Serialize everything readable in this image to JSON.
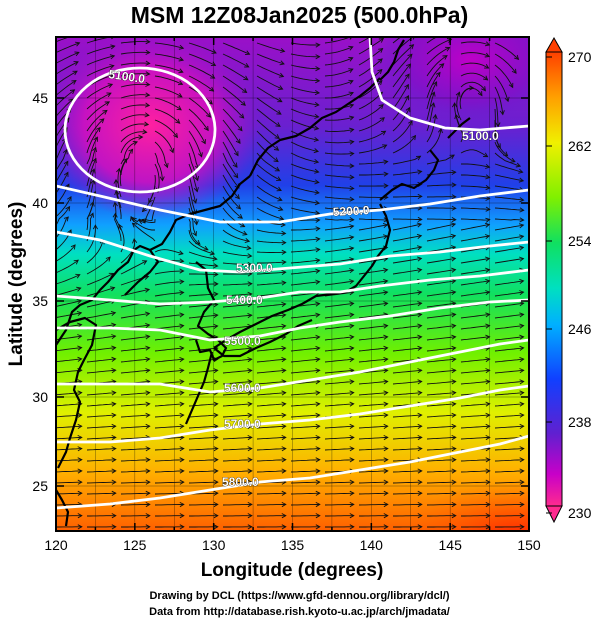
{
  "title": "MSM 12Z08Jan2025 (500.0hPa)",
  "axes": {
    "xlabel": "Longitude (degrees)",
    "ylabel": "Latitude  (degrees)",
    "xticks": [
      "120",
      "125",
      "130",
      "135",
      "140",
      "145",
      "150"
    ],
    "yticks": [
      "45",
      "40",
      "35",
      "30",
      "25"
    ]
  },
  "colorbar": {
    "ticks": [
      "270",
      "262",
      "254",
      "246",
      "238",
      "230"
    ],
    "range": [
      230,
      270
    ],
    "colors": [
      "#ff2a8f",
      "#c800c8",
      "#6020d0",
      "#1040ff",
      "#00b0ff",
      "#00e0c0",
      "#10e060",
      "#80f000",
      "#f0f000",
      "#ffa000",
      "#ff4000"
    ]
  },
  "contours": [
    {
      "label": "5100.0"
    },
    {
      "label": "5100.0"
    },
    {
      "label": "5200.0"
    },
    {
      "label": "5300.0"
    },
    {
      "label": "5400.0"
    },
    {
      "label": "5500.0"
    },
    {
      "label": "5600.0"
    },
    {
      "label": "5700.0"
    },
    {
      "label": "5800.0"
    }
  ],
  "credits": {
    "line1": "Drawing by DCL (https://www.gfd-dennou.org/library/dcl/)",
    "line2": "Data from http://database.rish.kyoto-u.ac.jp/arch/jmadata/"
  }
}
